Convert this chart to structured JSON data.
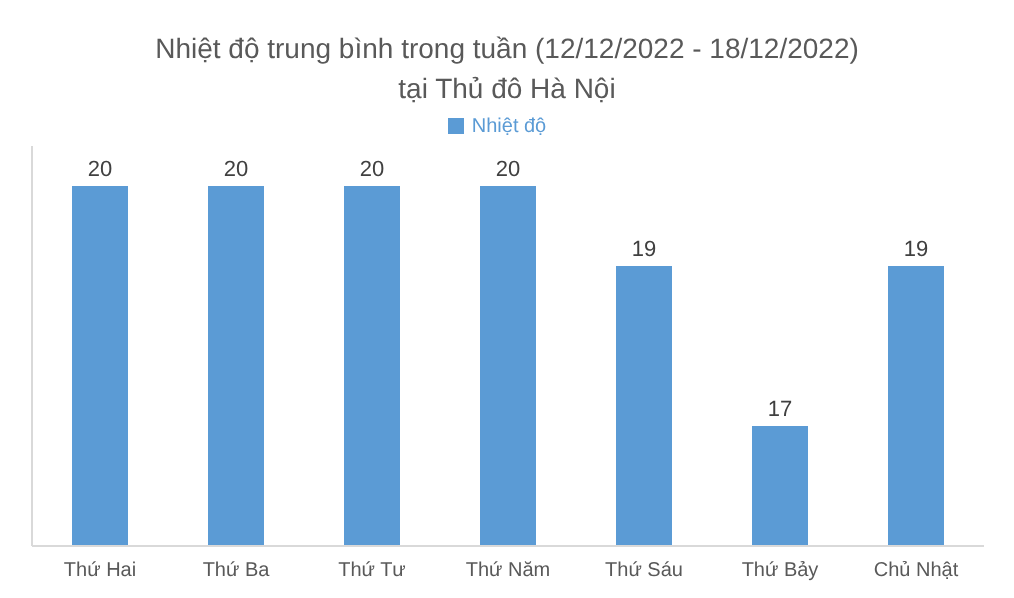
{
  "chart_data": {
    "type": "bar",
    "title": "Nhiệt độ trung bình trong tuần (12/12/2022 - 18/12/2022)\ntại Thủ đô Hà Nội",
    "categories": [
      "Thứ Hai",
      "Thứ Ba",
      "Thứ Tư",
      "Thứ Năm",
      "Thứ Sáu",
      "Thứ Bảy",
      "Chủ Nhật"
    ],
    "series": [
      {
        "name": "Nhiệt độ",
        "color": "#5b9bd5",
        "values": [
          20,
          20,
          20,
          20,
          19,
          17,
          19
        ]
      }
    ],
    "ylim": [
      15.5,
      20.5
    ],
    "tick_labels": "x",
    "data_labels": true,
    "legend": "top",
    "grid": false
  }
}
